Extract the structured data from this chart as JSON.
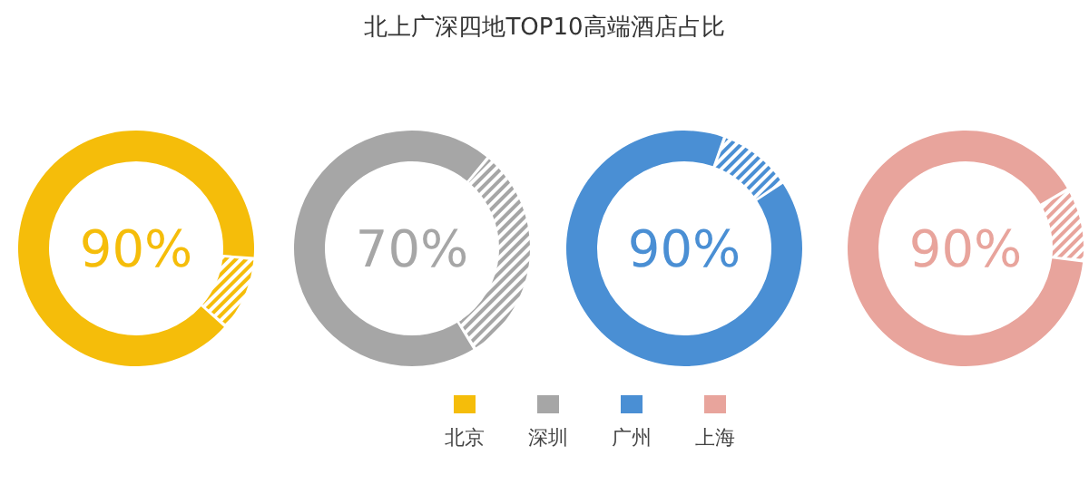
{
  "chart_data": [
    {
      "type": "donut",
      "title": "北上广深四地TOP10高端酒店占比",
      "categories": [
        "北京",
        null
      ],
      "values": [
        90,
        10
      ],
      "value_labels": [
        "90%",
        null
      ],
      "colors": [
        "#f5bd0a",
        "#f5bd0a"
      ],
      "legend": "bottom"
    },
    {
      "type": "donut",
      "categories": [
        "深圳",
        null
      ],
      "values": [
        70,
        30
      ],
      "value_labels": [
        "70%",
        null
      ],
      "colors": [
        "#a6a6a6",
        "#a6a6a6"
      ],
      "legend": "bottom"
    },
    {
      "type": "donut",
      "categories": [
        "广州",
        null
      ],
      "values": [
        90,
        10
      ],
      "value_labels": [
        "90%",
        null
      ],
      "colors": [
        "#4a8fd4",
        "#4a8fd4"
      ],
      "legend": "bottom"
    },
    {
      "type": "donut",
      "categories": [
        "上海",
        null
      ],
      "values": [
        90,
        10
      ],
      "value_labels": [
        "90%",
        null
      ],
      "colors": [
        "#e8a49c",
        "#e8a49c"
      ],
      "legend": "bottom"
    }
  ]
}
